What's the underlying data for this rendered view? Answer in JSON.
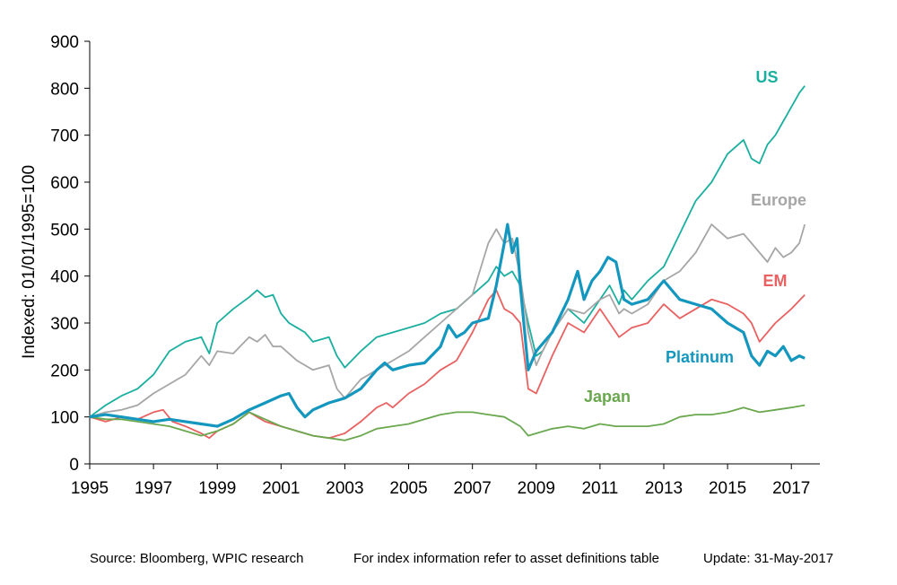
{
  "chart_data": {
    "type": "line",
    "ylabel": "Indexed: 01/01/1995=100",
    "ylim": [
      0,
      900
    ],
    "xlim": [
      1995,
      2017.5
    ],
    "y_ticks": [
      "0",
      "100",
      "200",
      "300",
      "400",
      "500",
      "600",
      "700",
      "800",
      "900"
    ],
    "x_ticks": [
      "1995",
      "1997",
      "1999",
      "2001",
      "2003",
      "2005",
      "2007",
      "2009",
      "2011",
      "2013",
      "2015",
      "2017"
    ],
    "grid": false,
    "legend": "inline labels near line ends",
    "series": [
      {
        "name": "US",
        "color": "#1aaf9f",
        "width": 1.8,
        "x": [
          1995,
          1995.5,
          1996,
          1996.5,
          1997,
          1997.5,
          1998,
          1998.5,
          1998.75,
          1999,
          1999.5,
          2000,
          2000.25,
          2000.5,
          2000.75,
          2001,
          2001.25,
          2001.5,
          2001.75,
          2002,
          2002.5,
          2002.75,
          2003,
          2003.5,
          2004,
          2004.5,
          2005,
          2005.5,
          2006,
          2006.5,
          2007,
          2007.5,
          2007.75,
          2008,
          2008.25,
          2008.5,
          2008.75,
          2009,
          2009.2,
          2009.5,
          2010,
          2010.5,
          2011,
          2011.3,
          2011.6,
          2011.75,
          2012,
          2012.5,
          2013,
          2013.5,
          2014,
          2014.5,
          2015,
          2015.5,
          2015.75,
          2016,
          2016.25,
          2016.5,
          2016.75,
          2017,
          2017.25,
          2017.42
        ],
        "y": [
          100,
          125,
          145,
          160,
          190,
          240,
          260,
          270,
          235,
          300,
          330,
          355,
          370,
          355,
          360,
          320,
          300,
          290,
          280,
          260,
          270,
          230,
          205,
          240,
          270,
          280,
          290,
          300,
          320,
          330,
          360,
          390,
          420,
          400,
          410,
          380,
          300,
          230,
          240,
          280,
          330,
          300,
          350,
          380,
          340,
          370,
          350,
          390,
          420,
          490,
          560,
          600,
          660,
          690,
          650,
          640,
          680,
          700,
          730,
          760,
          790,
          805
        ]
      },
      {
        "name": "Europe",
        "color": "#a6a6a6",
        "width": 1.8,
        "x": [
          1995,
          1995.5,
          1996,
          1996.5,
          1997,
          1997.5,
          1998,
          1998.5,
          1998.75,
          1999,
          1999.5,
          2000,
          2000.25,
          2000.5,
          2000.75,
          2001,
          2001.5,
          2002,
          2002.5,
          2002.75,
          2003,
          2003.5,
          2004,
          2004.5,
          2005,
          2005.5,
          2006,
          2006.5,
          2007,
          2007.5,
          2007.75,
          2008,
          2008.25,
          2008.5,
          2008.75,
          2009,
          2009.2,
          2009.5,
          2010,
          2010.5,
          2011,
          2011.3,
          2011.6,
          2011.75,
          2012,
          2012.5,
          2013,
          2013.5,
          2014,
          2014.5,
          2015,
          2015.5,
          2016,
          2016.25,
          2016.5,
          2016.75,
          2017,
          2017.25,
          2017.42
        ],
        "y": [
          100,
          110,
          115,
          125,
          150,
          170,
          190,
          230,
          210,
          240,
          235,
          270,
          260,
          275,
          250,
          250,
          220,
          200,
          210,
          160,
          140,
          180,
          200,
          220,
          240,
          270,
          300,
          330,
          360,
          470,
          500,
          470,
          480,
          400,
          280,
          210,
          240,
          280,
          330,
          320,
          350,
          360,
          320,
          330,
          320,
          340,
          390,
          410,
          450,
          510,
          480,
          490,
          450,
          430,
          460,
          440,
          450,
          470,
          510
        ]
      },
      {
        "name": "EM",
        "color": "#e96161",
        "width": 1.8,
        "x": [
          1995,
          1995.5,
          1996,
          1996.5,
          1997,
          1997.3,
          1997.6,
          1998,
          1998.5,
          1998.75,
          1999,
          1999.5,
          2000,
          2000.25,
          2000.5,
          2001,
          2001.5,
          2002,
          2002.5,
          2003,
          2003.5,
          2004,
          2004.3,
          2004.5,
          2005,
          2005.5,
          2006,
          2006.5,
          2007,
          2007.5,
          2007.75,
          2008,
          2008.25,
          2008.5,
          2008.75,
          2009,
          2009.5,
          2010,
          2010.5,
          2011,
          2011.3,
          2011.6,
          2012,
          2012.5,
          2013,
          2013.5,
          2014,
          2014.5,
          2015,
          2015.5,
          2015.75,
          2016,
          2016.5,
          2017,
          2017.42
        ],
        "y": [
          100,
          90,
          100,
          95,
          110,
          115,
          90,
          80,
          65,
          55,
          70,
          85,
          110,
          100,
          90,
          80,
          70,
          60,
          55,
          65,
          90,
          120,
          130,
          120,
          150,
          170,
          200,
          220,
          280,
          350,
          370,
          330,
          320,
          300,
          160,
          150,
          230,
          300,
          280,
          330,
          300,
          270,
          290,
          300,
          340,
          310,
          330,
          350,
          340,
          320,
          300,
          260,
          300,
          330,
          360
        ]
      },
      {
        "name": "Japan",
        "color": "#6aa84f",
        "width": 1.8,
        "x": [
          1995,
          1995.5,
          1996,
          1996.5,
          1997,
          1997.5,
          1998,
          1998.5,
          1999,
          1999.5,
          2000,
          2000.5,
          2001,
          2001.5,
          2002,
          2002.5,
          2003,
          2003.5,
          2004,
          2004.5,
          2005,
          2005.5,
          2006,
          2006.5,
          2007,
          2007.5,
          2008,
          2008.5,
          2008.75,
          2009,
          2009.5,
          2010,
          2010.5,
          2011,
          2011.5,
          2012,
          2012.5,
          2013,
          2013.5,
          2014,
          2014.5,
          2015,
          2015.5,
          2016,
          2016.5,
          2017,
          2017.42
        ],
        "y": [
          100,
          95,
          95,
          90,
          85,
          80,
          70,
          60,
          70,
          85,
          110,
          95,
          80,
          70,
          60,
          55,
          50,
          60,
          75,
          80,
          85,
          95,
          105,
          110,
          110,
          105,
          100,
          80,
          60,
          65,
          75,
          80,
          75,
          85,
          80,
          80,
          80,
          85,
          100,
          105,
          105,
          110,
          120,
          110,
          115,
          120,
          125
        ]
      },
      {
        "name": "Platinum",
        "color": "#1497bf",
        "width": 3.2,
        "x": [
          1995,
          1995.5,
          1996,
          1996.5,
          1997,
          1997.5,
          1998,
          1998.5,
          1999,
          1999.5,
          2000,
          2000.5,
          2001,
          2001.25,
          2001.5,
          2001.75,
          2002,
          2002.5,
          2003,
          2003.5,
          2004,
          2004.25,
          2004.5,
          2005,
          2005.5,
          2006,
          2006.25,
          2006.5,
          2006.75,
          2007,
          2007.5,
          2007.75,
          2008,
          2008.1,
          2008.25,
          2008.4,
          2008.5,
          2008.75,
          2009,
          2009.5,
          2010,
          2010.3,
          2010.5,
          2010.75,
          2011,
          2011.25,
          2011.5,
          2011.75,
          2012,
          2012.5,
          2013,
          2013.5,
          2014,
          2014.5,
          2015,
          2015.5,
          2015.75,
          2016,
          2016.25,
          2016.5,
          2016.75,
          2017,
          2017.25,
          2017.42
        ],
        "y": [
          100,
          105,
          100,
          95,
          90,
          95,
          90,
          85,
          80,
          95,
          115,
          130,
          145,
          150,
          120,
          100,
          115,
          130,
          140,
          160,
          200,
          215,
          200,
          210,
          215,
          250,
          295,
          270,
          280,
          300,
          310,
          380,
          470,
          510,
          450,
          480,
          380,
          200,
          240,
          280,
          350,
          410,
          350,
          390,
          410,
          440,
          430,
          350,
          340,
          350,
          390,
          350,
          340,
          330,
          300,
          280,
          230,
          210,
          240,
          230,
          250,
          220,
          230,
          225
        ]
      }
    ],
    "annotations": [
      {
        "text": "US",
        "color": "#1aaf9f"
      },
      {
        "text": "Europe",
        "color": "#a6a6a6"
      },
      {
        "text": "EM",
        "color": "#e96161"
      },
      {
        "text": "Platinum",
        "color": "#1497bf"
      },
      {
        "text": "Japan",
        "color": "#6aa84f"
      }
    ]
  },
  "footer": {
    "source": "Source: Bloomberg, WPIC research",
    "note": "For index information refer to asset definitions table",
    "update": "Update: 31-May-2017"
  }
}
